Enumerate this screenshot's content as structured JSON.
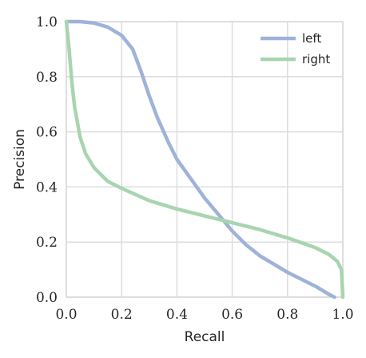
{
  "chart_data": {
    "type": "line",
    "title": "",
    "xlabel": "Recall",
    "ylabel": "Precision",
    "xlim": [
      0.0,
      1.0
    ],
    "ylim": [
      0.0,
      1.0
    ],
    "xticks": [
      0.0,
      0.2,
      0.4,
      0.6,
      0.8,
      1.0
    ],
    "yticks": [
      0.0,
      0.2,
      0.4,
      0.6,
      0.8,
      1.0
    ],
    "xtick_labels": [
      "0.0",
      "0.2",
      "0.4",
      "0.6",
      "0.8",
      "1.0"
    ],
    "ytick_labels": [
      "0.0",
      "0.2",
      "0.4",
      "0.6",
      "0.8",
      "1.0"
    ],
    "grid": true,
    "legend_position": "top-right",
    "series": [
      {
        "name": "left",
        "color": "#9fb3d8",
        "points": [
          [
            0.0,
            1.0
          ],
          [
            0.05,
            1.0
          ],
          [
            0.1,
            0.995
          ],
          [
            0.15,
            0.98
          ],
          [
            0.2,
            0.95
          ],
          [
            0.24,
            0.9
          ],
          [
            0.27,
            0.82
          ],
          [
            0.3,
            0.73
          ],
          [
            0.33,
            0.65
          ],
          [
            0.37,
            0.56
          ],
          [
            0.4,
            0.5
          ],
          [
            0.45,
            0.43
          ],
          [
            0.5,
            0.36
          ],
          [
            0.55,
            0.3
          ],
          [
            0.6,
            0.24
          ],
          [
            0.65,
            0.19
          ],
          [
            0.7,
            0.15
          ],
          [
            0.75,
            0.12
          ],
          [
            0.8,
            0.09
          ],
          [
            0.85,
            0.065
          ],
          [
            0.9,
            0.04
          ],
          [
            0.95,
            0.01
          ],
          [
            0.97,
            0.0
          ]
        ]
      },
      {
        "name": "right",
        "color": "#a8d5b0",
        "points": [
          [
            0.0,
            1.0
          ],
          [
            0.01,
            0.9
          ],
          [
            0.02,
            0.78
          ],
          [
            0.03,
            0.69
          ],
          [
            0.05,
            0.58
          ],
          [
            0.07,
            0.52
          ],
          [
            0.1,
            0.47
          ],
          [
            0.15,
            0.42
          ],
          [
            0.2,
            0.395
          ],
          [
            0.3,
            0.35
          ],
          [
            0.4,
            0.32
          ],
          [
            0.5,
            0.295
          ],
          [
            0.6,
            0.27
          ],
          [
            0.7,
            0.245
          ],
          [
            0.8,
            0.215
          ],
          [
            0.9,
            0.18
          ],
          [
            0.95,
            0.155
          ],
          [
            0.98,
            0.13
          ],
          [
            0.995,
            0.1
          ],
          [
            1.0,
            0.0
          ]
        ]
      }
    ]
  }
}
